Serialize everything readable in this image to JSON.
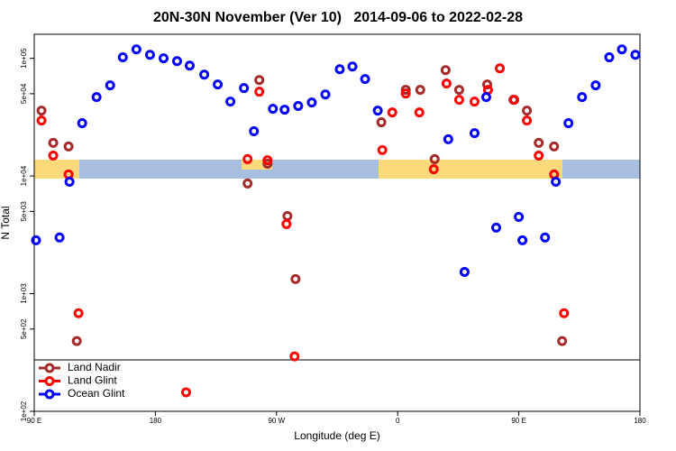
{
  "chart_data": {
    "type": "scatter",
    "title": "20N-30N November (Ver 10)   2014-09-06 to 2022-02-28",
    "x_label": "Longitude (deg E)",
    "y_label": "N Total",
    "xlim": [
      90,
      540
    ],
    "ylim": [
      100,
      160000
    ],
    "y_log": true,
    "legend_position": "bottom-left",
    "xticks": [
      {
        "value": 90,
        "label": "90 E"
      },
      180,
      {
        "value": 270,
        "label": "90 W"
      },
      {
        "value": 360,
        "label": "0"
      },
      {
        "value": 450,
        "label": "90 E"
      },
      {
        "value": 540,
        "label": "180"
      }
    ],
    "yticks": [
      {
        "value": 100,
        "label": "1e+02"
      },
      {
        "value": 500,
        "label": "5e+02"
      },
      {
        "value": 1000,
        "label": "1e+03"
      },
      {
        "value": 5000,
        "label": "5e+03"
      },
      {
        "value": 10000,
        "label": "1e+04"
      },
      {
        "value": 50000,
        "label": "5e+04"
      },
      {
        "value": 100000,
        "label": "1e+05"
      }
    ],
    "series": [
      {
        "name": "Land Nadir",
        "color": "#a52a2a",
        "x": [
          95.4,
          104.1,
          115.5,
          121.6,
          248.5,
          257.2,
          263.3,
          278.1,
          284.1,
          347.9,
          366.0,
          376.8,
          387.5,
          395.6,
          405.7,
          426.5,
          446.0,
          456.0,
          464.8,
          476.2,
          482.2
        ],
        "values": [
          35900,
          19100,
          17800,
          395,
          8630,
          65400,
          12700,
          4570,
          1330,
          28600,
          53900,
          53900,
          13900,
          79400,
          53900,
          59900,
          44400,
          35900,
          19100,
          17800,
          395
        ]
      },
      {
        "name": "Land Glint",
        "color": "#ff0000",
        "x": [
          95.4,
          104.1,
          115.5,
          122.9,
          202.8,
          248.5,
          257.2,
          263.3,
          277.4,
          283.4,
          348.6,
          356.0,
          366.0,
          376.1,
          386.8,
          396.3,
          405.7,
          417.1,
          427.1,
          435.9,
          446.6,
          456.0,
          464.8,
          476.2,
          483.6
        ],
        "values": [
          29600,
          14900,
          10300,
          682,
          145,
          13900,
          52000,
          13600,
          3900,
          293,
          16600,
          34700,
          50200,
          34700,
          11400,
          61000,
          44400,
          42900,
          53900,
          82200,
          44400,
          29600,
          14900,
          10300,
          682
        ]
      },
      {
        "name": "Ocean Glint",
        "color": "#0000ff",
        "x": [
          91.3,
          108.8,
          116.2,
          125.6,
          136.3,
          146.4,
          155.8,
          165.9,
          176.0,
          186.1,
          196.1,
          205.5,
          216.3,
          226.3,
          235.7,
          245.8,
          253.2,
          267.3,
          276.0,
          286.1,
          296.2,
          306.3,
          317.0,
          326.4,
          335.8,
          345.2,
          397.6,
          409.7,
          417.1,
          425.8,
          433.2,
          450.0,
          452.7,
          469.5,
          477.5,
          486.9,
          497.0,
          507.1,
          517.2,
          526.6,
          536.6
        ],
        "values": [
          2840,
          3000,
          8930,
          28100,
          46800,
          58900,
          102000,
          119000,
          107000,
          100000,
          94600,
          86700,
          72700,
          59900,
          42900,
          55800,
          24000,
          37200,
          36600,
          39300,
          42100,
          49300,
          80800,
          85200,
          66600,
          35900,
          20500,
          1530,
          23100,
          46800,
          3640,
          4490,
          2840,
          3000,
          8930,
          28100,
          46800,
          58900,
          102000,
          119000,
          107000
        ]
      }
    ]
  }
}
